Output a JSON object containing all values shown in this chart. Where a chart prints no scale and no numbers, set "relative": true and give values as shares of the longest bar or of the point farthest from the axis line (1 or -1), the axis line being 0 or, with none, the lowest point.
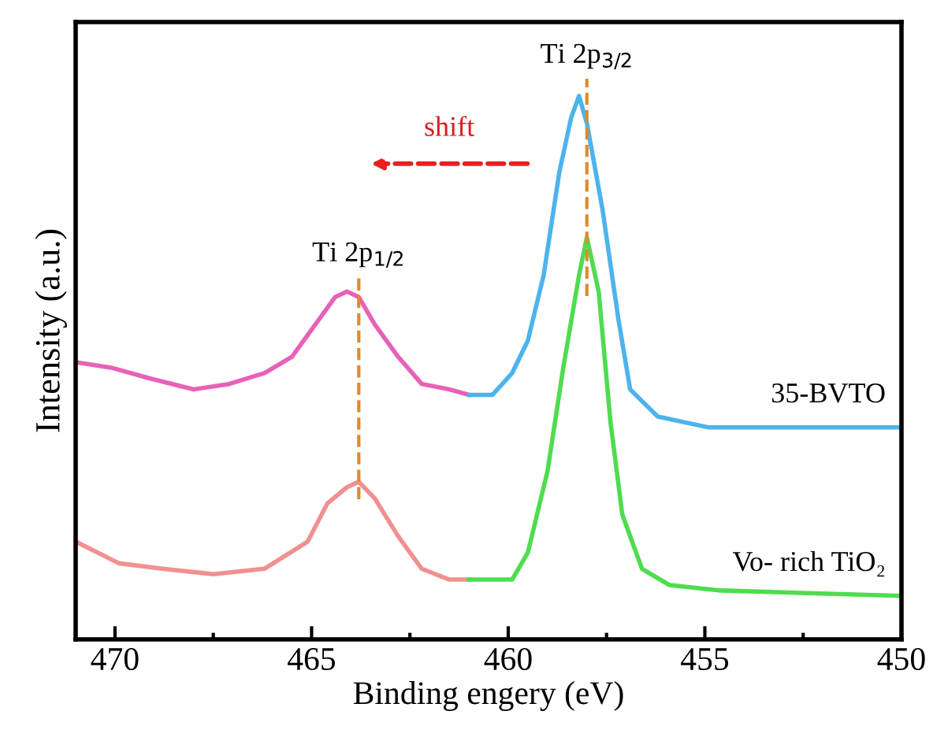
{
  "chart_data": {
    "type": "line",
    "relative": true,
    "xlabel": "Binding engery (eV)",
    "ylabel": "Intensity (a.u.)",
    "xlim": [
      471,
      450
    ],
    "xticks": [
      470,
      {
        "value": 467.5,
        "label": null
      },
      465,
      {
        "value": 462.5,
        "label": null
      },
      460,
      {
        "value": 457.5,
        "label": null
      },
      455,
      {
        "value": 452.5,
        "label": null
      },
      450
    ],
    "series": [
      {
        "color": "#e861b8",
        "x": [
          471.0,
          470.1,
          469.1,
          468.0,
          467.1,
          466.2,
          465.5,
          464.8,
          464.4,
          464.1,
          463.8,
          463.4,
          462.8,
          462.2,
          461.5,
          461.0
        ],
        "values": [
          0.51,
          0.5,
          0.48,
          0.46,
          0.47,
          0.49,
          0.52,
          0.59,
          0.63,
          0.64,
          0.63,
          0.58,
          0.52,
          0.47,
          0.46,
          0.45
        ]
      },
      {
        "name": "35-BVTO",
        "color": "#4db3ec",
        "x": [
          461.0,
          460.4,
          459.9,
          459.5,
          459.1,
          458.7,
          458.4,
          458.2,
          458.0,
          457.6,
          457.2,
          456.9,
          456.2,
          454.9,
          452.6,
          450.0
        ],
        "values": [
          0.45,
          0.45,
          0.49,
          0.55,
          0.67,
          0.86,
          0.96,
          1.0,
          0.95,
          0.79,
          0.59,
          0.46,
          0.41,
          0.39,
          0.39,
          0.39
        ]
      },
      {
        "color": "#f09090",
        "x": [
          471.0,
          469.9,
          468.8,
          467.5,
          466.2,
          465.1,
          464.6,
          464.1,
          463.8,
          463.4,
          462.8,
          462.2,
          461.5,
          461.0
        ],
        "values": [
          0.18,
          0.14,
          0.13,
          0.12,
          0.13,
          0.18,
          0.25,
          0.28,
          0.29,
          0.26,
          0.19,
          0.13,
          0.11,
          0.11
        ]
      },
      {
        "name": "Vo- rich TiO₂",
        "color": "#4fdc4f",
        "x": [
          461.0,
          460.4,
          459.9,
          459.5,
          459.0,
          458.6,
          458.2,
          458.0,
          457.7,
          457.4,
          457.1,
          456.6,
          455.9,
          454.6,
          450.0
        ],
        "values": [
          0.11,
          0.11,
          0.11,
          0.16,
          0.31,
          0.5,
          0.67,
          0.74,
          0.64,
          0.4,
          0.23,
          0.13,
          0.1,
          0.09,
          0.08
        ]
      }
    ],
    "ref_lines": [
      {
        "axis": "x",
        "value": 463.8,
        "label": "Ti 2p$_{1/2}$",
        "color": "#e08a2a",
        "line_style": "dashed"
      },
      {
        "axis": "x",
        "value": 458.0,
        "label": "Ti 2p$_{3/2}$",
        "color": "#e08a2a",
        "line_style": "dashed"
      }
    ],
    "annotations": [
      "shift"
    ],
    "grid": false,
    "legend": false
  }
}
